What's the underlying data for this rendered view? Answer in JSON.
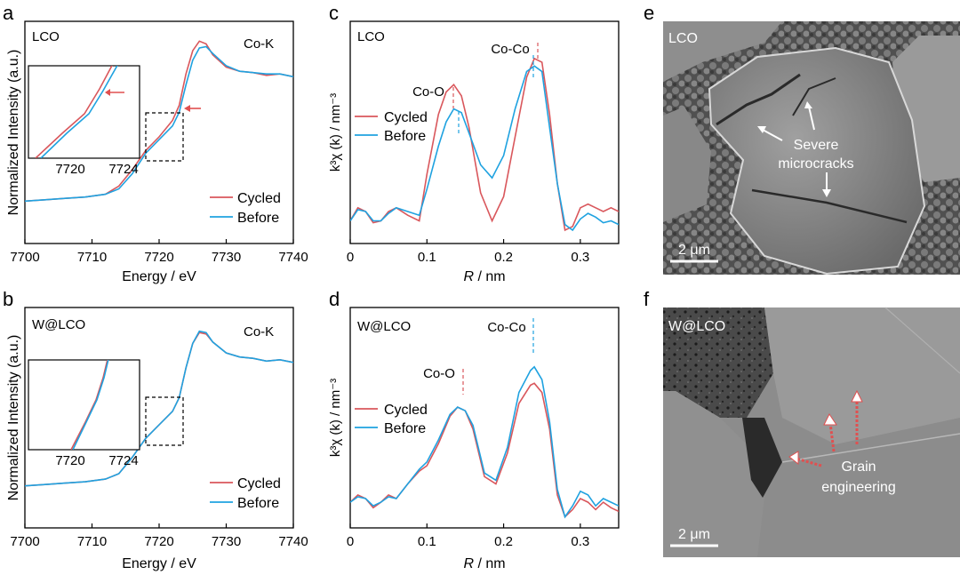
{
  "panels": {
    "a": {
      "letter": "a"
    },
    "b": {
      "letter": "b"
    },
    "c": {
      "letter": "c"
    },
    "d": {
      "letter": "d"
    },
    "e": {
      "letter": "e",
      "sample": "LCO",
      "annotation_line1": "Severe",
      "annotation_line2": "microcracks",
      "scale": "2 μm"
    },
    "f": {
      "letter": "f",
      "sample": "W@LCO",
      "annotation_line1": "Grain",
      "annotation_line2": "engineering",
      "scale": "2 μm"
    }
  },
  "colors": {
    "cycled": "#d9575c",
    "before": "#1fa2e0",
    "arrow_white": "#ffffff",
    "arrow_red": "#e05050"
  },
  "chart_data": [
    {
      "id": "a",
      "type": "line",
      "sample_label": "LCO",
      "edge_label": "Co-K",
      "xlabel": "Energy / eV",
      "ylabel": "Normalized Intensity (a.u.)",
      "xlim": [
        7700,
        7740
      ],
      "ylim": [
        0,
        1.3
      ],
      "xticks": [
        "7700",
        "7710",
        "7720",
        "7730",
        "7740"
      ],
      "legend": [
        "Cycled",
        "Before"
      ],
      "series": [
        {
          "name": "Cycled",
          "x": [
            7700,
            7703,
            7706,
            7709,
            7712,
            7714,
            7716,
            7718,
            7720,
            7722,
            7723,
            7724,
            7725,
            7726,
            7727,
            7728,
            7730,
            7732,
            7734,
            7736,
            7738,
            7740
          ],
          "y": [
            0.05,
            0.06,
            0.07,
            0.08,
            0.1,
            0.16,
            0.28,
            0.42,
            0.52,
            0.64,
            0.75,
            0.98,
            1.15,
            1.22,
            1.2,
            1.12,
            1.03,
            1.0,
            0.99,
            0.97,
            0.98,
            0.96
          ]
        },
        {
          "name": "Before",
          "x": [
            7700,
            7703,
            7706,
            7709,
            7712,
            7714,
            7716,
            7718,
            7720,
            7722,
            7723,
            7724,
            7725,
            7726,
            7727,
            7728,
            7730,
            7732,
            7734,
            7736,
            7738,
            7740
          ],
          "y": [
            0.05,
            0.06,
            0.07,
            0.08,
            0.1,
            0.14,
            0.25,
            0.4,
            0.5,
            0.6,
            0.7,
            0.9,
            1.08,
            1.17,
            1.18,
            1.13,
            1.04,
            1.0,
            0.99,
            0.98,
            0.98,
            0.96
          ]
        }
      ],
      "inset": {
        "xticks": [
          "7720",
          "7724"
        ]
      }
    },
    {
      "id": "b",
      "type": "line",
      "sample_label": "W@LCO",
      "edge_label": "Co-K",
      "xlabel": "Energy / eV",
      "ylabel": "Normalized Intensity (a.u.)",
      "xlim": [
        7700,
        7740
      ],
      "ylim": [
        0,
        1.3
      ],
      "xticks": [
        "7700",
        "7710",
        "7720",
        "7730",
        "7740"
      ],
      "legend": [
        "Cycled",
        "Before"
      ],
      "series": [
        {
          "name": "Cycled",
          "x": [
            7700,
            7703,
            7706,
            7709,
            7712,
            7714,
            7716,
            7718,
            7720,
            7722,
            7723,
            7724,
            7725,
            7726,
            7727,
            7728,
            7730,
            7732,
            7734,
            7736,
            7738,
            7740
          ],
          "y": [
            0.05,
            0.06,
            0.07,
            0.08,
            0.1,
            0.14,
            0.26,
            0.4,
            0.5,
            0.6,
            0.7,
            0.92,
            1.1,
            1.18,
            1.17,
            1.11,
            1.03,
            1.0,
            0.99,
            0.97,
            0.98,
            0.96
          ]
        },
        {
          "name": "Before",
          "x": [
            7700,
            7703,
            7706,
            7709,
            7712,
            7714,
            7716,
            7718,
            7720,
            7722,
            7723,
            7724,
            7725,
            7726,
            7727,
            7728,
            7730,
            7732,
            7734,
            7736,
            7738,
            7740
          ],
          "y": [
            0.05,
            0.06,
            0.07,
            0.08,
            0.1,
            0.14,
            0.26,
            0.4,
            0.5,
            0.6,
            0.7,
            0.92,
            1.1,
            1.19,
            1.18,
            1.11,
            1.03,
            1.0,
            0.99,
            0.97,
            0.98,
            0.96
          ]
        }
      ],
      "inset": {
        "xticks": [
          "7720",
          "7724"
        ]
      }
    },
    {
      "id": "c",
      "type": "line",
      "sample_label": "LCO",
      "xlabel_italic": "R",
      "xlabel_rest": " / nm",
      "ylabel": "k³χ (k) / nm⁻³",
      "xlim": [
        0,
        0.35
      ],
      "ylim": [
        0,
        1.0
      ],
      "xticks": [
        "0",
        "0.1",
        "0.2",
        "0.3"
      ],
      "legend": [
        "Cycled",
        "Before"
      ],
      "peak_labels": [
        "Co-O",
        "Co-Co"
      ],
      "series": [
        {
          "name": "Cycled",
          "x": [
            0,
            0.01,
            0.02,
            0.03,
            0.04,
            0.05,
            0.06,
            0.075,
            0.09,
            0.1,
            0.115,
            0.125,
            0.135,
            0.145,
            0.155,
            0.17,
            0.185,
            0.2,
            0.215,
            0.23,
            0.24,
            0.25,
            0.26,
            0.27,
            0.28,
            0.29,
            0.3,
            0.31,
            0.32,
            0.33,
            0.34,
            0.35
          ],
          "y": [
            0.05,
            0.12,
            0.1,
            0.04,
            0.05,
            0.1,
            0.12,
            0.08,
            0.05,
            0.3,
            0.62,
            0.74,
            0.78,
            0.72,
            0.55,
            0.2,
            0.05,
            0.18,
            0.5,
            0.82,
            0.92,
            0.9,
            0.62,
            0.25,
            0.0,
            0.02,
            0.12,
            0.14,
            0.12,
            0.1,
            0.12,
            0.1
          ]
        },
        {
          "name": "Before",
          "x": [
            0,
            0.01,
            0.02,
            0.03,
            0.04,
            0.05,
            0.06,
            0.075,
            0.09,
            0.1,
            0.115,
            0.125,
            0.135,
            0.145,
            0.155,
            0.17,
            0.185,
            0.2,
            0.215,
            0.23,
            0.24,
            0.25,
            0.26,
            0.27,
            0.28,
            0.29,
            0.3,
            0.31,
            0.32,
            0.33,
            0.34,
            0.35
          ],
          "y": [
            0.05,
            0.11,
            0.1,
            0.05,
            0.05,
            0.09,
            0.12,
            0.1,
            0.08,
            0.22,
            0.45,
            0.58,
            0.65,
            0.63,
            0.52,
            0.35,
            0.28,
            0.4,
            0.65,
            0.85,
            0.88,
            0.85,
            0.55,
            0.25,
            0.03,
            0.0,
            0.06,
            0.09,
            0.07,
            0.04,
            0.05,
            0.03
          ]
        }
      ]
    },
    {
      "id": "d",
      "type": "line",
      "sample_label": "W@LCO",
      "xlabel_italic": "R",
      "xlabel_rest": " / nm",
      "ylabel": "k³χ (k) / nm⁻³",
      "xlim": [
        0,
        0.35
      ],
      "ylim": [
        0,
        1.0
      ],
      "xticks": [
        "0",
        "0.1",
        "0.2",
        "0.3"
      ],
      "legend": [
        "Cycled",
        "Before"
      ],
      "peak_labels": [
        "Co-O",
        "Co-Co"
      ],
      "series": [
        {
          "name": "Cycled",
          "x": [
            0,
            0.01,
            0.02,
            0.03,
            0.04,
            0.05,
            0.06,
            0.075,
            0.09,
            0.1,
            0.115,
            0.13,
            0.14,
            0.15,
            0.16,
            0.175,
            0.19,
            0.205,
            0.22,
            0.235,
            0.24,
            0.25,
            0.26,
            0.27,
            0.28,
            0.29,
            0.3,
            0.31,
            0.32,
            0.33,
            0.34,
            0.35
          ],
          "y": [
            0.08,
            0.12,
            0.1,
            0.05,
            0.08,
            0.12,
            0.1,
            0.18,
            0.25,
            0.28,
            0.4,
            0.55,
            0.6,
            0.58,
            0.48,
            0.22,
            0.18,
            0.35,
            0.62,
            0.72,
            0.73,
            0.68,
            0.48,
            0.12,
            0.0,
            0.04,
            0.1,
            0.08,
            0.04,
            0.08,
            0.05,
            0.03
          ]
        },
        {
          "name": "Before",
          "x": [
            0,
            0.01,
            0.02,
            0.03,
            0.04,
            0.05,
            0.06,
            0.075,
            0.09,
            0.1,
            0.115,
            0.13,
            0.14,
            0.15,
            0.16,
            0.175,
            0.19,
            0.205,
            0.22,
            0.235,
            0.24,
            0.25,
            0.26,
            0.27,
            0.28,
            0.29,
            0.3,
            0.31,
            0.32,
            0.33,
            0.34,
            0.35
          ],
          "y": [
            0.08,
            0.11,
            0.1,
            0.06,
            0.08,
            0.11,
            0.1,
            0.18,
            0.26,
            0.3,
            0.42,
            0.56,
            0.6,
            0.58,
            0.5,
            0.24,
            0.2,
            0.38,
            0.68,
            0.8,
            0.82,
            0.75,
            0.52,
            0.15,
            0.0,
            0.06,
            0.14,
            0.12,
            0.06,
            0.1,
            0.08,
            0.06
          ]
        }
      ]
    }
  ]
}
